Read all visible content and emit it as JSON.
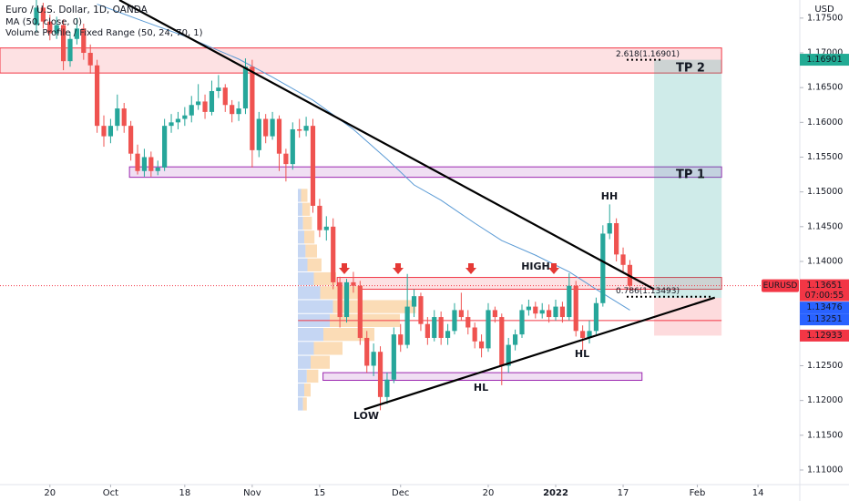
{
  "chart_data": {
    "type": "candlestick",
    "title": "Euro / U.S. Dollar, 1D, OANDA",
    "indicators": [
      "MA (50, close, 0)",
      "Volume Profile / Fixed Range (50, 24, 70, 1)"
    ],
    "currency": "USD",
    "xlim": [
      -7.4,
      111.2
    ],
    "ylim": [
      1.1079,
      1.1776
    ],
    "xticks": [
      {
        "value": 0,
        "label": "20"
      },
      {
        "value": 9,
        "label": "Oct"
      },
      {
        "value": 20,
        "label": "18"
      },
      {
        "value": 30,
        "label": "Nov"
      },
      {
        "value": 40,
        "label": "15"
      },
      {
        "value": 52,
        "label": "Dec"
      },
      {
        "value": 65,
        "label": "20"
      },
      {
        "value": 75,
        "label": "2022"
      },
      {
        "value": 85,
        "label": "17"
      },
      {
        "value": 96,
        "label": "Feb"
      },
      {
        "value": 105,
        "label": "14"
      }
    ],
    "yticks": [
      {
        "value": 1.175,
        "label": "1.17500"
      },
      {
        "value": 1.17,
        "label": "1.17000"
      },
      {
        "value": 1.165,
        "label": "1.16500"
      },
      {
        "value": 1.16,
        "label": "1.16000"
      },
      {
        "value": 1.155,
        "label": "1.15500"
      },
      {
        "value": 1.15,
        "label": "1.15000"
      },
      {
        "value": 1.145,
        "label": "1.14500"
      },
      {
        "value": 1.14,
        "label": "1.14000"
      },
      {
        "value": 1.125,
        "label": "1.12500"
      },
      {
        "value": 1.12,
        "label": "1.12000"
      },
      {
        "value": 1.115,
        "label": "1.11500"
      },
      {
        "value": 1.11,
        "label": "1.11000"
      }
    ],
    "grid": false,
    "up_color": "#26a69a",
    "down_color": "#ef5350",
    "x": [
      -2,
      -1,
      0,
      1,
      2,
      3,
      4,
      5,
      6,
      7,
      8,
      9,
      10,
      11,
      12,
      13,
      14,
      15,
      16,
      17,
      18,
      19,
      20,
      21,
      22,
      23,
      24,
      25,
      26,
      27,
      28,
      29,
      30,
      31,
      32,
      33,
      34,
      35,
      36,
      37,
      38,
      39,
      40,
      41,
      42,
      43,
      44,
      45,
      46,
      47,
      48,
      49,
      50,
      51,
      52,
      53,
      54,
      55,
      56,
      57,
      58,
      59,
      60,
      61,
      62,
      63,
      64,
      65,
      66,
      67,
      68,
      69,
      70,
      71,
      72,
      73,
      74,
      75,
      76,
      77,
      78,
      79,
      80,
      81,
      82,
      83,
      84,
      85,
      86
    ],
    "ohlc": [
      [
        1.174,
        1.1777,
        1.173,
        1.1765
      ],
      [
        1.1765,
        1.1772,
        1.1735,
        1.1745
      ],
      [
        1.1745,
        1.1755,
        1.1718,
        1.1728
      ],
      [
        1.1728,
        1.1752,
        1.172,
        1.174
      ],
      [
        1.174,
        1.1748,
        1.1675,
        1.1688
      ],
      [
        1.1688,
        1.173,
        1.168,
        1.172
      ],
      [
        1.172,
        1.175,
        1.1712,
        1.1735
      ],
      [
        1.1735,
        1.1742,
        1.169,
        1.17
      ],
      [
        1.17,
        1.1712,
        1.167,
        1.1682
      ],
      [
        1.1682,
        1.169,
        1.1585,
        1.1595
      ],
      [
        1.1595,
        1.161,
        1.1565,
        1.158
      ],
      [
        1.158,
        1.1605,
        1.157,
        1.1595
      ],
      [
        1.1595,
        1.164,
        1.1588,
        1.162
      ],
      [
        1.162,
        1.1628,
        1.1585,
        1.1595
      ],
      [
        1.1595,
        1.1602,
        1.1545,
        1.1555
      ],
      [
        1.1555,
        1.1568,
        1.1525,
        1.153
      ],
      [
        1.153,
        1.1562,
        1.1522,
        1.155
      ],
      [
        1.155,
        1.1558,
        1.1522,
        1.153
      ],
      [
        1.153,
        1.1545,
        1.1524,
        1.1535
      ],
      [
        1.1535,
        1.1605,
        1.153,
        1.1595
      ],
      [
        1.1595,
        1.1612,
        1.1585,
        1.16
      ],
      [
        1.16,
        1.1615,
        1.159,
        1.1605
      ],
      [
        1.1605,
        1.1622,
        1.1595,
        1.161
      ],
      [
        1.161,
        1.1638,
        1.16,
        1.1625
      ],
      [
        1.1625,
        1.1655,
        1.1618,
        1.163
      ],
      [
        1.163,
        1.164,
        1.1605,
        1.1615
      ],
      [
        1.1615,
        1.166,
        1.161,
        1.1645
      ],
      [
        1.1645,
        1.1668,
        1.1635,
        1.165
      ],
      [
        1.165,
        1.1655,
        1.1615,
        1.1625
      ],
      [
        1.1625,
        1.1632,
        1.16,
        1.1612
      ],
      [
        1.1612,
        1.163,
        1.1602,
        1.162
      ],
      [
        1.162,
        1.1692,
        1.1612,
        1.168
      ],
      [
        1.168,
        1.169,
        1.1535,
        1.156
      ],
      [
        1.156,
        1.1615,
        1.155,
        1.1605
      ],
      [
        1.1605,
        1.1612,
        1.157,
        1.158
      ],
      [
        1.158,
        1.1615,
        1.1575,
        1.1605
      ],
      [
        1.1605,
        1.161,
        1.153,
        1.1555
      ],
      [
        1.1555,
        1.1562,
        1.1515,
        1.154
      ],
      [
        1.154,
        1.16,
        1.1532,
        1.159
      ],
      [
        1.159,
        1.1605,
        1.1578,
        1.1588
      ],
      [
        1.1588,
        1.1608,
        1.158,
        1.1595
      ],
      [
        1.1595,
        1.1605,
        1.147,
        1.148
      ],
      [
        1.148,
        1.149,
        1.1435,
        1.1445
      ],
      [
        1.1445,
        1.1465,
        1.143,
        1.145
      ],
      [
        1.145,
        1.1462,
        1.136,
        1.137
      ],
      [
        1.137,
        1.1378,
        1.1305,
        1.132
      ],
      [
        1.132,
        1.1375,
        1.1312,
        1.137
      ],
      [
        1.137,
        1.1385,
        1.1355,
        1.1365
      ],
      [
        1.1365,
        1.1372,
        1.128,
        1.129
      ],
      [
        1.129,
        1.13,
        1.124,
        1.125
      ],
      [
        1.125,
        1.1282,
        1.1235,
        1.127
      ],
      [
        1.127,
        1.1278,
        1.1186,
        1.1205
      ],
      [
        1.1205,
        1.124,
        1.1195,
        1.123
      ],
      [
        1.123,
        1.1305,
        1.1225,
        1.1295
      ],
      [
        1.1295,
        1.131,
        1.127,
        1.128
      ],
      [
        1.128,
        1.1382,
        1.1275,
        1.1335
      ],
      [
        1.1335,
        1.136,
        1.132,
        1.135
      ],
      [
        1.135,
        1.1355,
        1.13,
        1.131
      ],
      [
        1.131,
        1.132,
        1.128,
        1.129
      ],
      [
        1.129,
        1.133,
        1.1285,
        1.132
      ],
      [
        1.132,
        1.1328,
        1.128,
        1.129
      ],
      [
        1.129,
        1.131,
        1.128,
        1.13
      ],
      [
        1.13,
        1.134,
        1.1295,
        1.133
      ],
      [
        1.133,
        1.1355,
        1.1315,
        1.132
      ],
      [
        1.132,
        1.133,
        1.1295,
        1.1305
      ],
      [
        1.1305,
        1.1312,
        1.1275,
        1.1285
      ],
      [
        1.1285,
        1.1295,
        1.1262,
        1.1275
      ],
      [
        1.1275,
        1.134,
        1.127,
        1.133
      ],
      [
        1.133,
        1.1335,
        1.1312,
        1.132
      ],
      [
        1.132,
        1.1325,
        1.1222,
        1.125
      ],
      [
        1.125,
        1.129,
        1.124,
        1.128
      ],
      [
        1.128,
        1.1302,
        1.1272,
        1.1295
      ],
      [
        1.1295,
        1.1338,
        1.129,
        1.133
      ],
      [
        1.133,
        1.1345,
        1.1322,
        1.1335
      ],
      [
        1.1335,
        1.1342,
        1.1318,
        1.1325
      ],
      [
        1.1325,
        1.134,
        1.1318,
        1.133
      ],
      [
        1.133,
        1.1338,
        1.1312,
        1.132
      ],
      [
        1.132,
        1.1345,
        1.1315,
        1.1335
      ],
      [
        1.1335,
        1.1342,
        1.1312,
        1.132
      ],
      [
        1.132,
        1.1383,
        1.1315,
        1.1365
      ],
      [
        1.1365,
        1.1372,
        1.1292,
        1.13
      ],
      [
        1.13,
        1.1308,
        1.1272,
        1.129
      ],
      [
        1.129,
        1.1315,
        1.1282,
        1.13
      ],
      [
        1.13,
        1.1348,
        1.1295,
        1.134
      ],
      [
        1.134,
        1.1452,
        1.1335,
        1.144
      ],
      [
        1.144,
        1.1482,
        1.1432,
        1.1455
      ],
      [
        1.1455,
        1.1462,
        1.14,
        1.141
      ],
      [
        1.141,
        1.142,
        1.1385,
        1.1395
      ],
      [
        1.1395,
        1.1402,
        1.1358,
        1.1365
      ]
    ],
    "ma": {
      "color": "#5b9bd5",
      "x": [
        7,
        14,
        20,
        28,
        33,
        39,
        45,
        50,
        54,
        58,
        63,
        67,
        72,
        77,
        81,
        86
      ],
      "values": [
        1.177,
        1.1745,
        1.1724,
        1.1691,
        1.1665,
        1.1632,
        1.159,
        1.1547,
        1.151,
        1.1488,
        1.1455,
        1.143,
        1.1409,
        1.1385,
        1.136,
        1.133
      ]
    },
    "volume_profile": {
      "up_color": "#c5d6f3",
      "down_color": "#fbdcb6",
      "bins": [
        1.1185,
        1.1205,
        1.1225,
        1.1245,
        1.1265,
        1.1285,
        1.1305,
        1.1325,
        1.1345,
        1.1365,
        1.1385,
        1.1405,
        1.1425,
        1.1445,
        1.1465,
        1.1485,
        1.1505
      ],
      "up": [
        8,
        10,
        14,
        20,
        25,
        40,
        50,
        55,
        35,
        25,
        15,
        12,
        10,
        8,
        7,
        5
      ],
      "down": [
        6,
        10,
        18,
        30,
        45,
        80,
        110,
        130,
        60,
        35,
        22,
        18,
        16,
        14,
        12,
        10
      ]
    },
    "zones": [
      {
        "x": [
          -7.4,
          99.6
        ],
        "low": 1.1671,
        "high": 1.1707,
        "color": "#f23645"
      },
      {
        "x": [
          11.8,
          99.6
        ],
        "low": 1.1521,
        "high": 1.1536,
        "color": "#9c27b0"
      },
      {
        "x": [
          42.6,
          99.6
        ],
        "low": 1.136,
        "high": 1.1377,
        "color": "#f23645"
      },
      {
        "x": [
          40.5,
          87.8
        ],
        "low": 1.1229,
        "high": 1.124,
        "color": "#9c27b0"
      }
    ],
    "hline": {
      "x": [
        36.8,
        99.6
      ],
      "value": 1.1315,
      "color": "#f23645"
    },
    "trendlines": [
      {
        "points": [
          [
            10.3,
            1.1776
          ],
          [
            89.6,
            1.136
          ]
        ]
      },
      {
        "points": [
          [
            46.6,
            1.1187
          ],
          [
            98.6,
            1.1348
          ]
        ]
      }
    ],
    "position": {
      "x": [
        89.6,
        99.6
      ],
      "entry": 1.13476,
      "target": 1.16901,
      "stop": 1.12933
    },
    "fib": [
      {
        "label": "2.618(1.16901)",
        "value": 1.16901
      },
      {
        "label": "0.786(1.13493)",
        "value": 1.13493
      }
    ],
    "annotations": [
      "HH",
      "HIGH",
      "LOW",
      "HL",
      "HL",
      "TP 2",
      "TP 1"
    ],
    "last": {
      "name": "EURUSD",
      "value": 1.13651,
      "label": "1.13651",
      "countdown": "07:00:55",
      "color": "#f23645"
    },
    "price_tags": [
      {
        "value": 1.16901,
        "label": "1.16901",
        "color": "#22ab94"
      },
      {
        "value": 1.13476,
        "label": "1.13476",
        "color": "#2962ff"
      },
      {
        "value": 1.13251,
        "label": "1.13251",
        "color": "#2962ff"
      },
      {
        "value": 1.12933,
        "label": "1.12933",
        "color": "#f23645"
      }
    ]
  }
}
